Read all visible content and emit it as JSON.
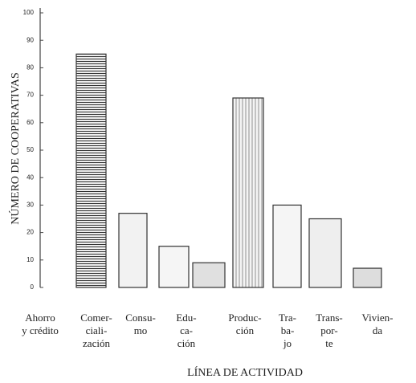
{
  "chart_data": {
    "type": "pictogram",
    "y_label": "NÚMERO DE COOPERATIVAS",
    "x_label": "LÍNEA DE ACTIVIDAD",
    "categories": [
      [
        "Ahorro",
        "y crédito"
      ],
      [
        "Comer-",
        "ciali-",
        "zación"
      ],
      [
        "Consu-",
        "mo"
      ],
      [
        "Edu-",
        "ca-",
        "ción"
      ],
      [
        "Produc-",
        "ción"
      ],
      [
        "Tra-",
        "ba-",
        "jo"
      ],
      [
        "Trans-",
        "por-",
        "te"
      ],
      [
        "Vivien-",
        "da"
      ]
    ],
    "values": [
      85,
      27,
      15,
      9,
      69,
      30,
      25,
      7
    ],
    "ylim": [
      0,
      100
    ],
    "yticks": [
      0,
      10,
      20,
      30,
      40,
      50,
      60,
      70,
      80,
      90,
      100
    ]
  }
}
